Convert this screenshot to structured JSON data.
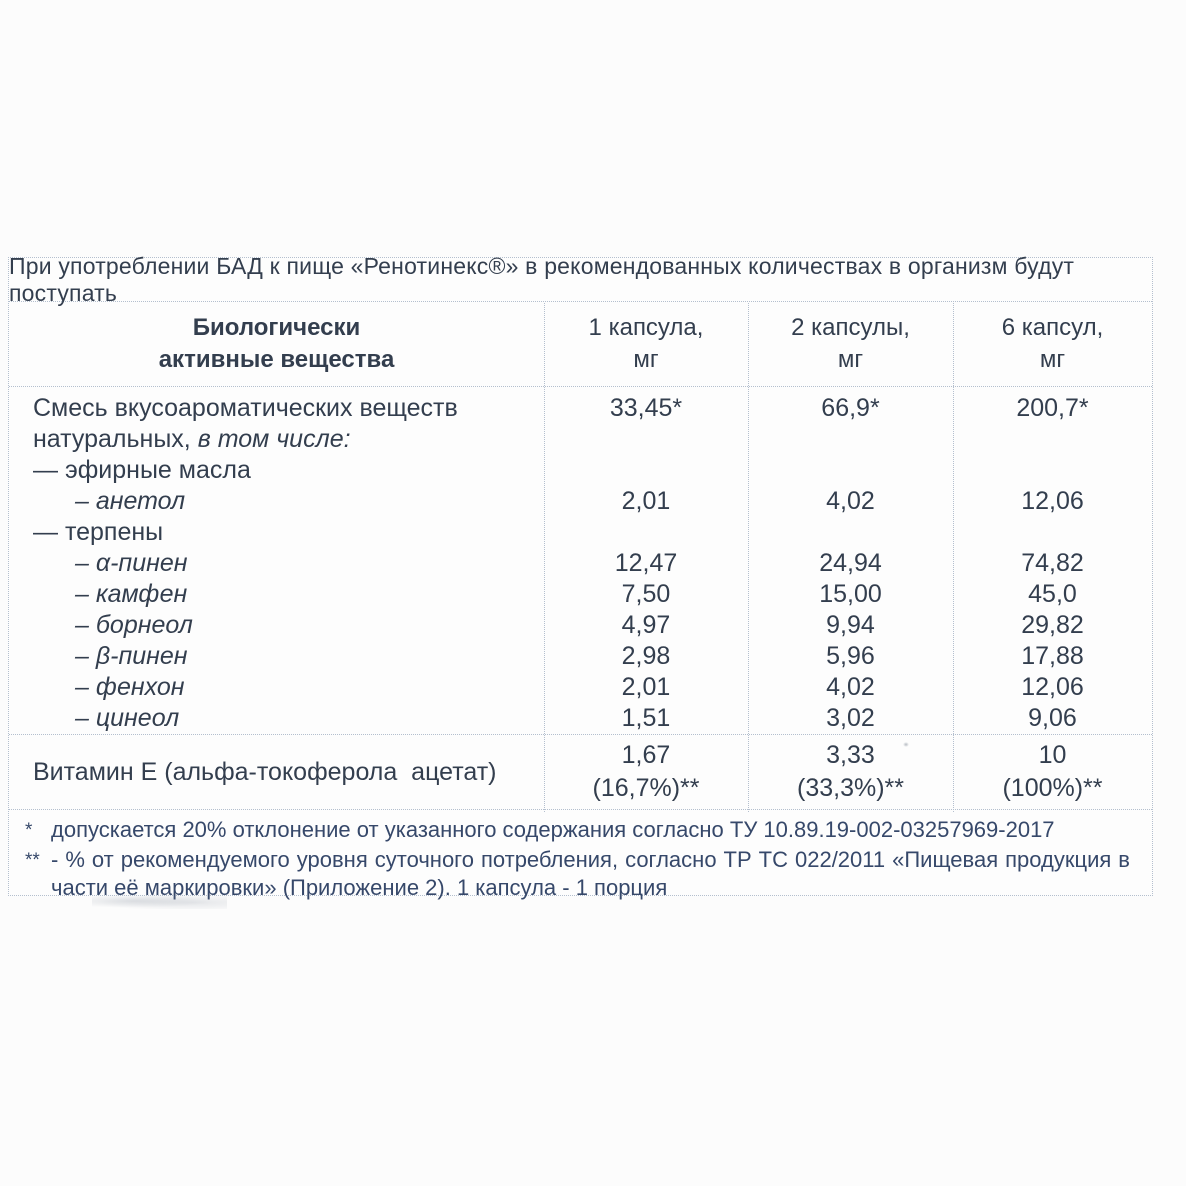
{
  "table": {
    "title": "При употреблении БАД к пище «Ренотинекс®» в рекомендованных количествах в организм будут поступать",
    "columns": {
      "substance": {
        "line1": "Биологически",
        "line2": "активные вещества"
      },
      "col1": {
        "line1": "1 капсула,",
        "line2": "мг"
      },
      "col2": {
        "line1": "2 капсулы,",
        "line2": "мг"
      },
      "col3": {
        "line1": "6 капсул,",
        "line2": "мг"
      }
    },
    "rows": [
      {
        "name": "Смесь вкусоароматических веществ",
        "values": [
          "33,45*",
          "66,9*",
          "200,7*"
        ]
      },
      {
        "name": "натуральных,",
        "name_italic": "в том числе:",
        "values": [
          "",
          "",
          ""
        ]
      },
      {
        "name": "— эфирные масла",
        "values": [
          "",
          "",
          ""
        ]
      },
      {
        "name": "– анетол",
        "values": [
          "2,01",
          "4,02",
          "12,06"
        ]
      },
      {
        "name": "— терпены",
        "values": [
          "",
          "",
          ""
        ]
      },
      {
        "name": "– α-пинен",
        "values": [
          "12,47",
          "24,94",
          "74,82"
        ]
      },
      {
        "name": "– камфен",
        "values": [
          "7,50",
          "15,00",
          "45,0"
        ]
      },
      {
        "name": "– борнеол",
        "values": [
          "4,97",
          "9,94",
          "29,82"
        ]
      },
      {
        "name": "– β-пинен",
        "values": [
          "2,98",
          "5,96",
          "17,88"
        ]
      },
      {
        "name": "– фенхон",
        "values": [
          "2,01",
          "4,02",
          "12,06"
        ]
      },
      {
        "name": "– цинеол",
        "values": [
          "1,51",
          "3,02",
          "9,06"
        ]
      }
    ],
    "vitamin_row": {
      "name": "Витамин Е (альфа-токоферола  ацетат)",
      "values": [
        {
          "amount": "1,67",
          "percent": "(16,7%)**"
        },
        {
          "amount": "3,33",
          "percent": "(33,3%)**"
        },
        {
          "amount": "10",
          "percent": "(100%)**"
        }
      ]
    },
    "footnotes": [
      {
        "marker": "*",
        "text": "допускается 20% отклонение от указанного содержания согласно ТУ 10.89.19-002-03257969-2017"
      },
      {
        "marker": "**",
        "text": "- % от рекомендуемого уровня суточного потребления, согласно ТР ТС 022/2011 «Пищевая продукция в части её маркировки» (Приложение 2).  1 капсула - 1 порция"
      }
    ],
    "colors": {
      "text": "#333e4e",
      "footnote_text": "#36486a",
      "border": "#b4bfce"
    }
  }
}
